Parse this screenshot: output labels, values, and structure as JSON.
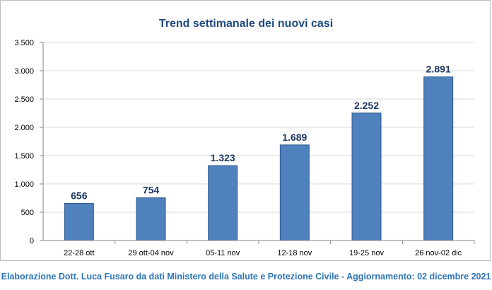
{
  "chart_data": {
    "type": "bar",
    "title": "Trend settimanale dei nuovi casi",
    "categories": [
      "22-28 ott",
      "29 ott-04 nov",
      "05-11 nov",
      "12-18 nov",
      "19-25 nov",
      "26 nov-02 dic"
    ],
    "values": [
      656,
      754,
      1323,
      1689,
      2252,
      2891
    ],
    "data_labels": [
      "656",
      "754",
      "1.323",
      "1.689",
      "2.252",
      "2.891"
    ],
    "ylim": [
      0,
      3500
    ],
    "y_ticks": [
      0,
      500,
      1000,
      1500,
      2000,
      2500,
      3000,
      3500
    ],
    "y_tick_labels": [
      "0",
      "500",
      "1.000",
      "1.500",
      "2.000",
      "2.500",
      "3.000",
      "3.500"
    ],
    "xlabel": "",
    "ylabel": "",
    "grid": true,
    "legend": "none",
    "colors": {
      "bar": "#4f81bd",
      "bar_border": "#2e5a8e",
      "title": "#1f497d",
      "data_label": "#1f3864",
      "grid": "#d9d9d9"
    }
  },
  "footer": {
    "text": "Elaborazione Dott. Luca Fusaro da dati Ministero della Salute e Protezione Civile - Aggiornamento: 02 dicembre 2021"
  }
}
